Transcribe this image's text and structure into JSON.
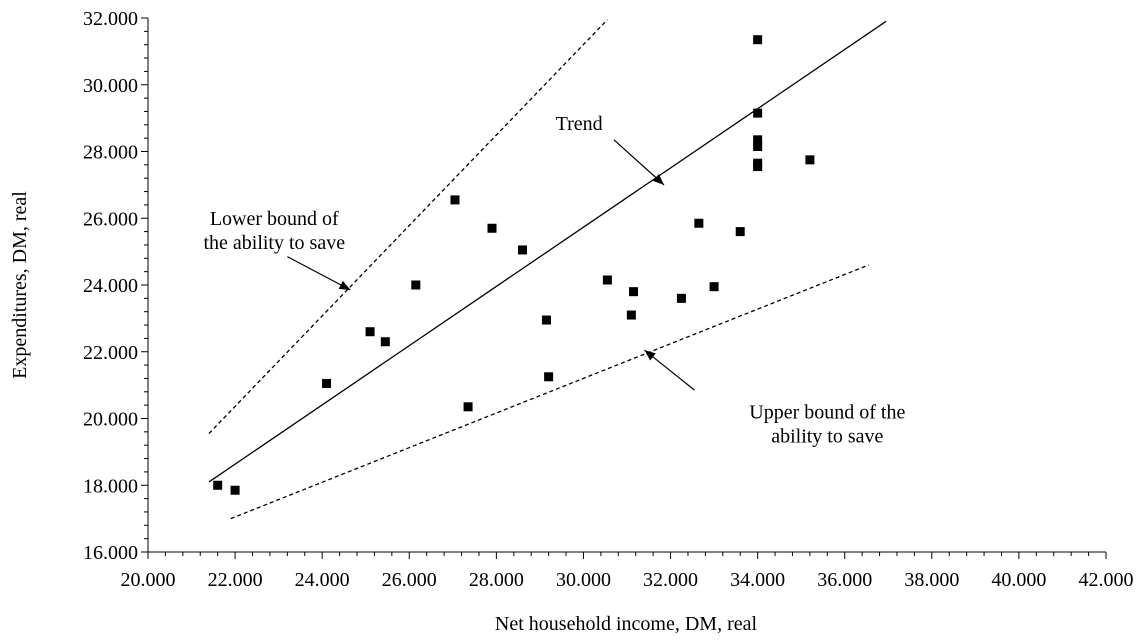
{
  "chart_data": {
    "type": "scatter",
    "title": "",
    "xlabel": "Net household income, DM, real",
    "ylabel": "Expenditures, DM, real",
    "xlim": [
      20000,
      42000
    ],
    "ylim": [
      16000,
      32000
    ],
    "x_ticks": [
      20000,
      22000,
      24000,
      26000,
      28000,
      30000,
      32000,
      34000,
      36000,
      38000,
      40000,
      42000
    ],
    "x_tick_labels": [
      "20.000",
      "22.000",
      "24.000",
      "26.000",
      "28.000",
      "30.000",
      "32.000",
      "34.000",
      "36.000",
      "38.000",
      "40.000",
      "42.000"
    ],
    "y_ticks": [
      16000,
      18000,
      20000,
      22000,
      24000,
      26000,
      28000,
      30000,
      32000
    ],
    "y_tick_labels": [
      "16.000",
      "18.000",
      "20.000",
      "22.000",
      "24.000",
      "26.000",
      "28.000",
      "30.000",
      "32.000"
    ],
    "grid": false,
    "points": [
      {
        "x": 21600,
        "y": 18000
      },
      {
        "x": 22000,
        "y": 17850
      },
      {
        "x": 24100,
        "y": 21050
      },
      {
        "x": 25100,
        "y": 22600
      },
      {
        "x": 25450,
        "y": 22300
      },
      {
        "x": 26150,
        "y": 24000
      },
      {
        "x": 27050,
        "y": 26550
      },
      {
        "x": 27350,
        "y": 20350
      },
      {
        "x": 27900,
        "y": 25700
      },
      {
        "x": 28600,
        "y": 25050
      },
      {
        "x": 29150,
        "y": 22950
      },
      {
        "x": 29200,
        "y": 21250
      },
      {
        "x": 30550,
        "y": 24150
      },
      {
        "x": 31150,
        "y": 23800
      },
      {
        "x": 31100,
        "y": 23100
      },
      {
        "x": 32250,
        "y": 23600
      },
      {
        "x": 32650,
        "y": 25850
      },
      {
        "x": 33000,
        "y": 23950
      },
      {
        "x": 33600,
        "y": 25600
      },
      {
        "x": 34000,
        "y": 31350
      },
      {
        "x": 34000,
        "y": 29150
      },
      {
        "x": 34000,
        "y": 28350
      },
      {
        "x": 34000,
        "y": 28150
      },
      {
        "x": 34000,
        "y": 27650
      },
      {
        "x": 34000,
        "y": 27550
      },
      {
        "x": 35200,
        "y": 27750
      }
    ],
    "lines": [
      {
        "style": "solid",
        "from": [
          21400,
          18100
        ],
        "to": [
          36950,
          31900
        ]
      },
      {
        "style": "dashed",
        "from": [
          21400,
          19550
        ],
        "to": [
          30550,
          31950
        ]
      },
      {
        "style": "dashed",
        "from": [
          21900,
          17000
        ],
        "to": [
          36550,
          24600
        ]
      }
    ],
    "annotations": [
      {
        "lines": [
          "Trend"
        ],
        "text_at": [
          29900,
          28650
        ],
        "arrow_from": [
          30700,
          28350
        ],
        "arrow_to": [
          31850,
          27000
        ]
      },
      {
        "lines": [
          "Lower bound of",
          "the ability to save"
        ],
        "text_at": [
          22900,
          25800
        ],
        "arrow_from": [
          23200,
          24850
        ],
        "arrow_to": [
          24650,
          23850
        ]
      },
      {
        "lines": [
          "Upper bound of the",
          "ability to save"
        ],
        "text_at": [
          35600,
          20000
        ],
        "arrow_from": [
          32550,
          20850
        ],
        "arrow_to": [
          31400,
          22050
        ]
      }
    ]
  }
}
